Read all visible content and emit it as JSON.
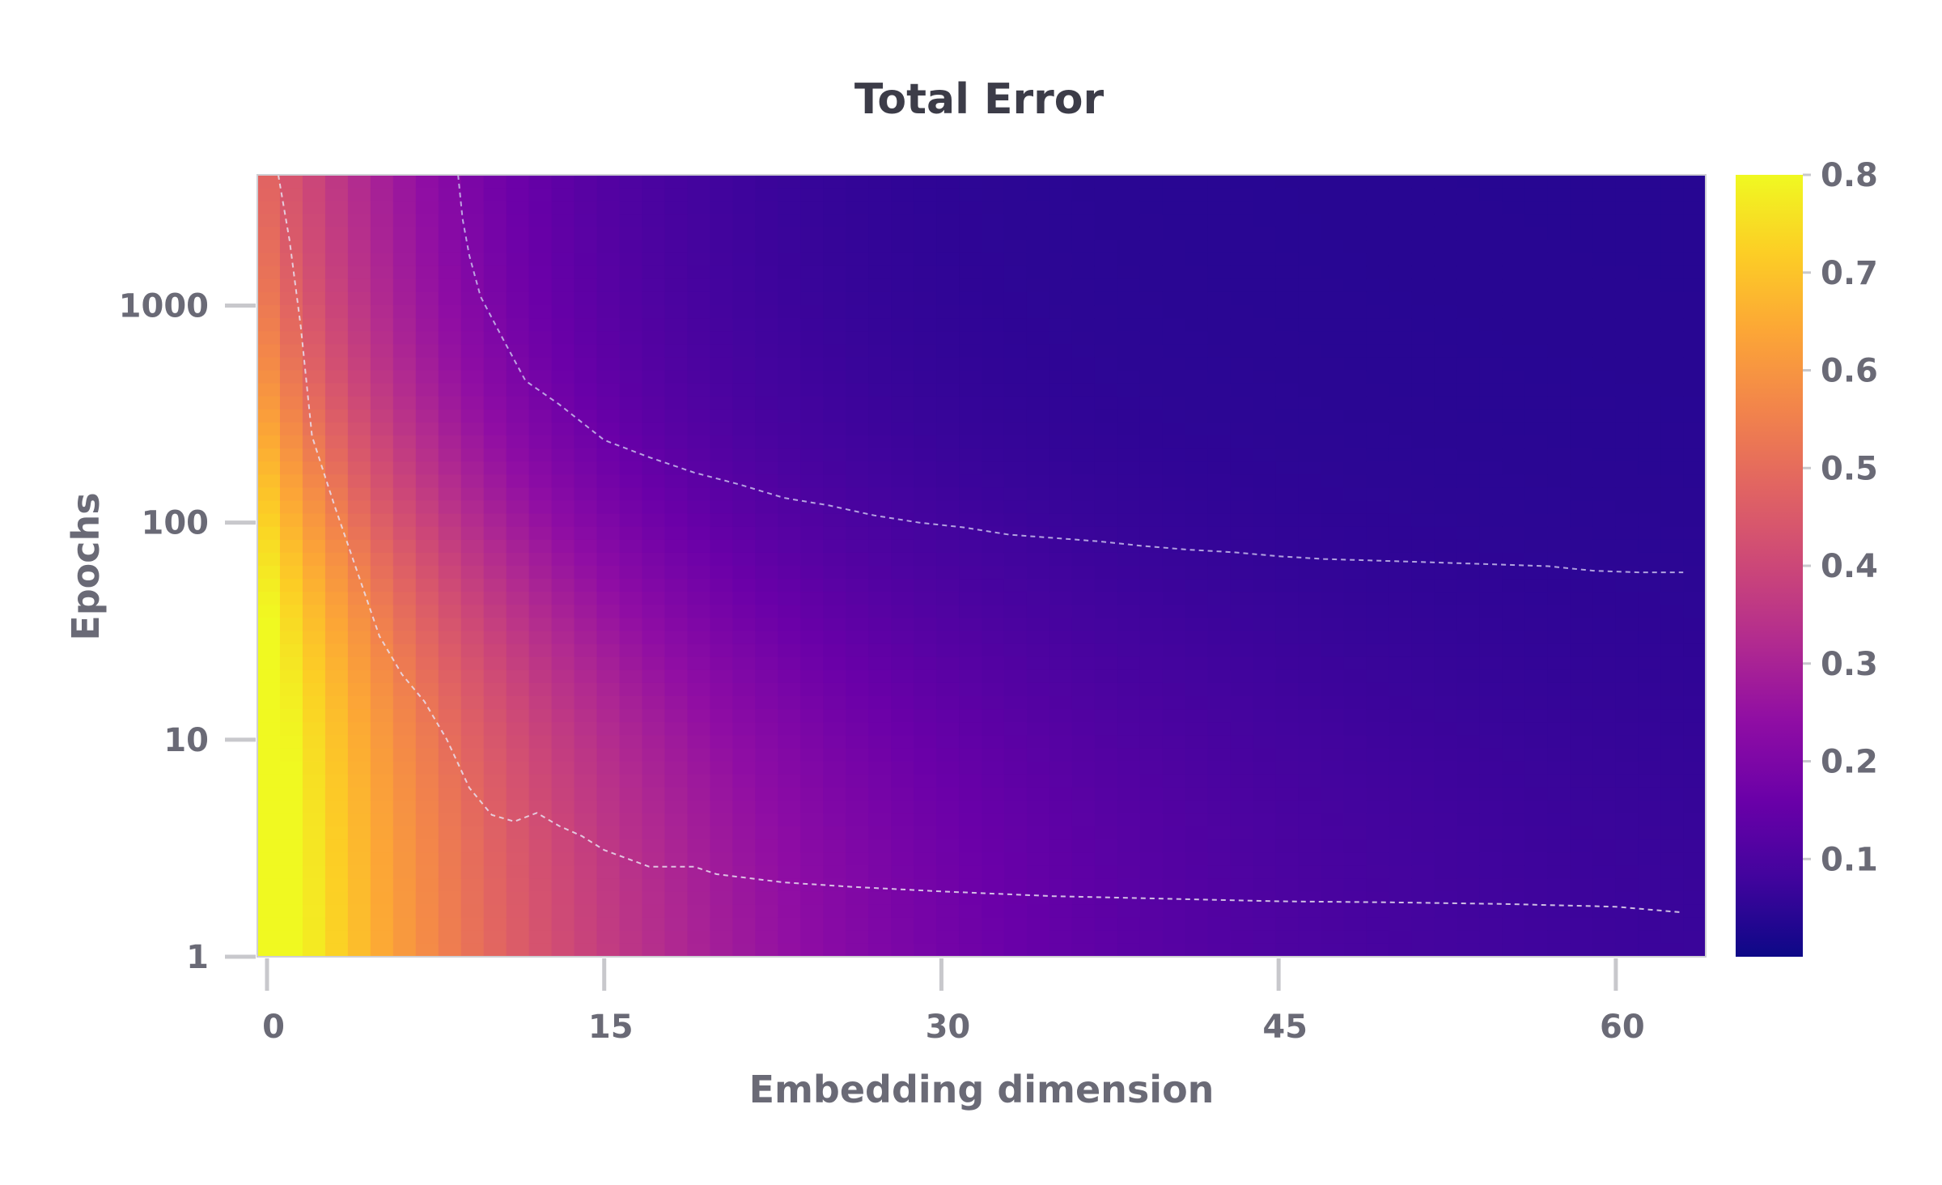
{
  "chart_data": {
    "type": "heatmap",
    "title": "Total Error",
    "xlabel": "Embedding dimension",
    "ylabel": "Epochs",
    "x_range": [
      0,
      64
    ],
    "x_ticks": [
      0,
      15,
      30,
      45,
      60
    ],
    "y_scale": "log",
    "y_range": [
      1,
      4000
    ],
    "y_ticks": [
      1,
      10,
      100,
      1000
    ],
    "colorbar": {
      "colormap": "plasma",
      "range": [
        0,
        0.8
      ],
      "ticks": [
        0.1,
        0.2,
        0.3,
        0.4,
        0.5,
        0.6,
        0.7,
        0.8
      ]
    },
    "contours": [
      {
        "style": "dashed",
        "color": "#e8e0f0",
        "points": [
          [
            0.5,
            4000
          ],
          [
            1,
            2000
          ],
          [
            1.5,
            800
          ],
          [
            2,
            250
          ],
          [
            3,
            120
          ],
          [
            4,
            60
          ],
          [
            5,
            30
          ],
          [
            6,
            20
          ],
          [
            7,
            15
          ],
          [
            8,
            10
          ],
          [
            9,
            6
          ],
          [
            10,
            4.5
          ],
          [
            11,
            4.2
          ],
          [
            12,
            4.6
          ],
          [
            13,
            4.0
          ],
          [
            14,
            3.6
          ],
          [
            15,
            3.1
          ],
          [
            17,
            2.6
          ],
          [
            19,
            2.6
          ],
          [
            20,
            2.4
          ],
          [
            23,
            2.2
          ],
          [
            26,
            2.1
          ],
          [
            30,
            2.0
          ],
          [
            35,
            1.9
          ],
          [
            40,
            1.85
          ],
          [
            45,
            1.8
          ],
          [
            50,
            1.78
          ],
          [
            55,
            1.75
          ],
          [
            60,
            1.7
          ],
          [
            63,
            1.6
          ]
        ]
      },
      {
        "style": "dashed",
        "color": "#c8c0ec",
        "points": [
          [
            8.5,
            4000
          ],
          [
            8.7,
            2500
          ],
          [
            9,
            1700
          ],
          [
            9.5,
            1100
          ],
          [
            10.5,
            700
          ],
          [
            11.5,
            450
          ],
          [
            13,
            350
          ],
          [
            15,
            240
          ],
          [
            17,
            200
          ],
          [
            19,
            170
          ],
          [
            21,
            150
          ],
          [
            23,
            130
          ],
          [
            25,
            120
          ],
          [
            27,
            108
          ],
          [
            29,
            100
          ],
          [
            31,
            95
          ],
          [
            33,
            88
          ],
          [
            35,
            85
          ],
          [
            37,
            82
          ],
          [
            39,
            78
          ],
          [
            41,
            75
          ],
          [
            43,
            73
          ],
          [
            45,
            70
          ],
          [
            47,
            68
          ],
          [
            49,
            67
          ],
          [
            51,
            66
          ],
          [
            53,
            65
          ],
          [
            55,
            64
          ],
          [
            57,
            63
          ],
          [
            59,
            60
          ],
          [
            61,
            59
          ],
          [
            63,
            59
          ]
        ]
      }
    ]
  }
}
